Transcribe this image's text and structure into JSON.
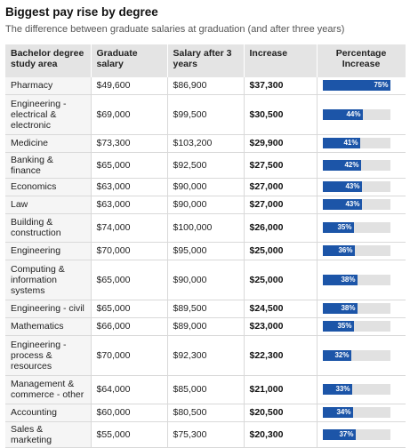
{
  "title": "Biggest pay rise by degree",
  "subtitle": "The difference between graduate salaries at graduation (and after three years)",
  "columns": [
    "Bachelor degree study area",
    "Graduate salary",
    "Salary after 3 years",
    "Increase",
    "Percentage Increase"
  ],
  "colors": {
    "bar": "#1c55a8",
    "track": "#e1e1e1",
    "header_bg": "#e4e4e4"
  },
  "rows": [
    {
      "area": "Pharmacy",
      "grad": "$49,600",
      "after": "$86,900",
      "increase": "$37,300",
      "pct_label": "75%",
      "pct": 75,
      "h": 19
    },
    {
      "area": "Engineering - electrical & electronic",
      "grad": "$69,000",
      "after": "$99,500",
      "increase": "$30,500",
      "pct_label": "44%",
      "pct": 44,
      "h": 45
    },
    {
      "area": "Medicine",
      "grad": "$73,300",
      "after": "$103,200",
      "increase": "$29,900",
      "pct_label": "41%",
      "pct": 41,
      "h": 20
    },
    {
      "area": "Banking & finance",
      "grad": "$65,000",
      "after": "$92,500",
      "increase": "$27,500",
      "pct_label": "42%",
      "pct": 42,
      "h": 20
    },
    {
      "area": "Economics",
      "grad": "$63,000",
      "after": "$90,000",
      "increase": "$27,000",
      "pct_label": "43%",
      "pct": 43,
      "h": 20
    },
    {
      "area": "Law",
      "grad": "$63,000",
      "after": "$90,000",
      "increase": "$27,000",
      "pct_label": "43%",
      "pct": 43,
      "h": 20
    },
    {
      "area": "Building & construction",
      "grad": "$74,000",
      "after": "$100,000",
      "increase": "$26,000",
      "pct_label": "35%",
      "pct": 35,
      "h": 32
    },
    {
      "area": "Engineering",
      "grad": "$70,000",
      "after": "$95,000",
      "increase": "$25,000",
      "pct_label": "36%",
      "pct": 36,
      "h": 20
    },
    {
      "area": "Computing & information systems",
      "grad": "$65,000",
      "after": "$90,000",
      "increase": "$25,000",
      "pct_label": "38%",
      "pct": 38,
      "h": 45
    },
    {
      "area": "Engineering - civil",
      "grad": "$65,000",
      "after": "$89,500",
      "increase": "$24,500",
      "pct_label": "38%",
      "pct": 38,
      "h": 20
    },
    {
      "area": "Mathematics",
      "grad": "$66,000",
      "after": "$89,000",
      "increase": "$23,000",
      "pct_label": "35%",
      "pct": 35,
      "h": 20
    },
    {
      "area": "Engineering - process & resources",
      "grad": "$70,000",
      "after": "$92,300",
      "increase": "$22,300",
      "pct_label": "32%",
      "pct": 32,
      "h": 45
    },
    {
      "area": "Management & commerce - other",
      "grad": "$64,000",
      "after": "$85,000",
      "increase": "$21,000",
      "pct_label": "33%",
      "pct": 33,
      "h": 32
    },
    {
      "area": "Accounting",
      "grad": "$60,000",
      "after": "$80,500",
      "increase": "$20,500",
      "pct_label": "34%",
      "pct": 34,
      "h": 20
    },
    {
      "area": "Sales & marketing",
      "grad": "$55,000",
      "after": "$75,300",
      "increase": "$20,300",
      "pct_label": "37%",
      "pct": 37,
      "h": 20
    }
  ]
}
